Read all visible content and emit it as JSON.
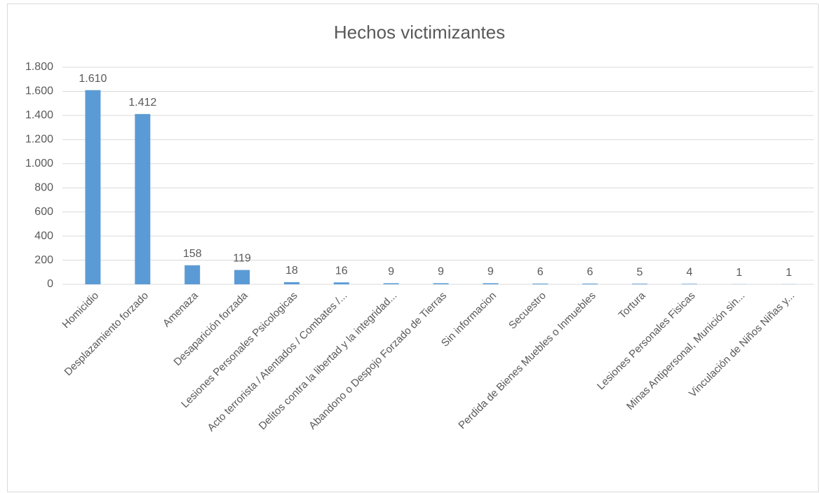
{
  "chart_data": {
    "type": "bar",
    "title": "Hechos victimizantes",
    "categories": [
      "Homicidio",
      "Desplazamiento forzado",
      "Amenaza",
      "Desaparición forzada",
      "Lesiones Personales Psicologicas",
      "Acto terrorista / Atentados / Combates /...",
      "Delitos contra la libertad y la integridad...",
      "Abandono o Despojo Forzado de Tierras",
      "Sin informacion",
      "Secuestro",
      "Perdida de Bienes Muebles o Inmuebles",
      "Tortura",
      "Lesiones Personales Fisicas",
      "Minas Antipersonal, Munición sin...",
      "Vinculación de Niños Niñas y..."
    ],
    "values": [
      1610,
      1412,
      158,
      119,
      18,
      16,
      9,
      9,
      9,
      6,
      6,
      5,
      4,
      1,
      1
    ],
    "value_labels": [
      "1.610",
      "1.412",
      "158",
      "119",
      "18",
      "16",
      "9",
      "9",
      "9",
      "6",
      "6",
      "5",
      "4",
      "1",
      "1"
    ],
    "color": "#5b9bd5",
    "ylim": [
      0,
      1800
    ],
    "yticks": [
      0,
      200,
      400,
      600,
      800,
      {
        "value": 1000,
        "label": "1.000"
      },
      {
        "value": 1200,
        "label": "1.200"
      },
      {
        "value": 1400,
        "label": "1.400"
      },
      {
        "value": 1600,
        "label": "1.600"
      },
      {
        "value": 1800,
        "label": "1.800"
      }
    ],
    "grid": true
  }
}
